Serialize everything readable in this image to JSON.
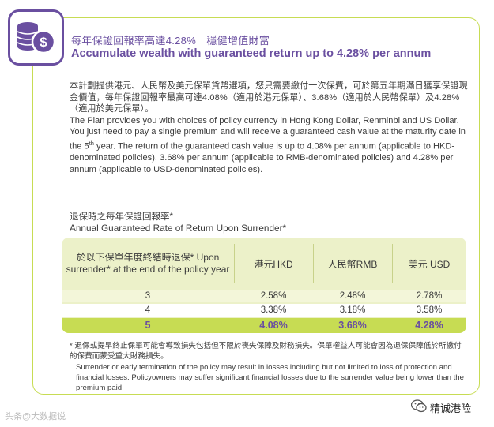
{
  "header": {
    "title_zh": "每年保證回報率高達4.28%　穩健增值財富",
    "title_en": "Accumulate wealth with guaranteed return up to 4.28% per annum"
  },
  "body": {
    "zh_paragraph": "本計劃提供港元、人民幣及美元保單貨幣選項，您只需要繳付一次保費，可於第五年期滿日獲享保證現金價值，每年保證回報率最高可達4.08%（適用於港元保單）、3.68%（適用於人民幣保單）及4.28%（適用於美元保單）。",
    "en_paragraph_before": "The Plan provides you with choices of policy currency in Hong Kong Dollar, Renminbi and US Dollar. You just need to pay a single premium and will receive a guaranteed cash value at the maturity date in the 5",
    "en_superscript": "th",
    "en_paragraph_after": " year.  The return of the guaranteed cash value is up to 4.08% per annum (applicable to HKD-denominated policies), 3.68% per annum (applicable to RMB-denominated policies) and 4.28% per annum (applicable to USD-denominated policies)."
  },
  "section": {
    "title_zh": "退保時之每年保證回報率*",
    "title_en": "Annual Guaranteed Rate of Return Upon Surrender*"
  },
  "table": {
    "header_col0": "於以下保單年度終結時退保* Upon surrender* at the end of the policy year",
    "header_hkd": "港元HKD",
    "header_rmb": "人民幣RMB",
    "header_usd": "美元 USD",
    "rows": [
      {
        "year": "3",
        "hkd": "2.58%",
        "rmb": "2.48%",
        "usd": "2.78%"
      },
      {
        "year": "4",
        "hkd": "3.38%",
        "rmb": "3.18%",
        "usd": "3.58%"
      },
      {
        "year": "5",
        "hkd": "4.08%",
        "rmb": "3.68%",
        "usd": "4.28%"
      }
    ]
  },
  "notes": {
    "zh": "* 退保或提早終止保單可能會導致損失包括但不限於喪失保障及財務損失。保單權益人可能會因為退保保障低於所繳付的保費而蒙受重大財務損失。",
    "en": "Surrender or early termination of the policy may result in losses including but not limited to loss of protection and financial losses. Policyowners may suffer significant financial losses due to the surrender value being lower than the premium paid."
  },
  "watermarks": {
    "left": "头条@大数据说",
    "right": "精诚港险"
  },
  "icons": {
    "main": "coin-stack-dollar-icon",
    "wechat": "wechat-icon"
  },
  "colors": {
    "accent_purple": "#6a4fa0",
    "accent_green": "#c7dc53",
    "table_bg": "#ecf1c9"
  }
}
